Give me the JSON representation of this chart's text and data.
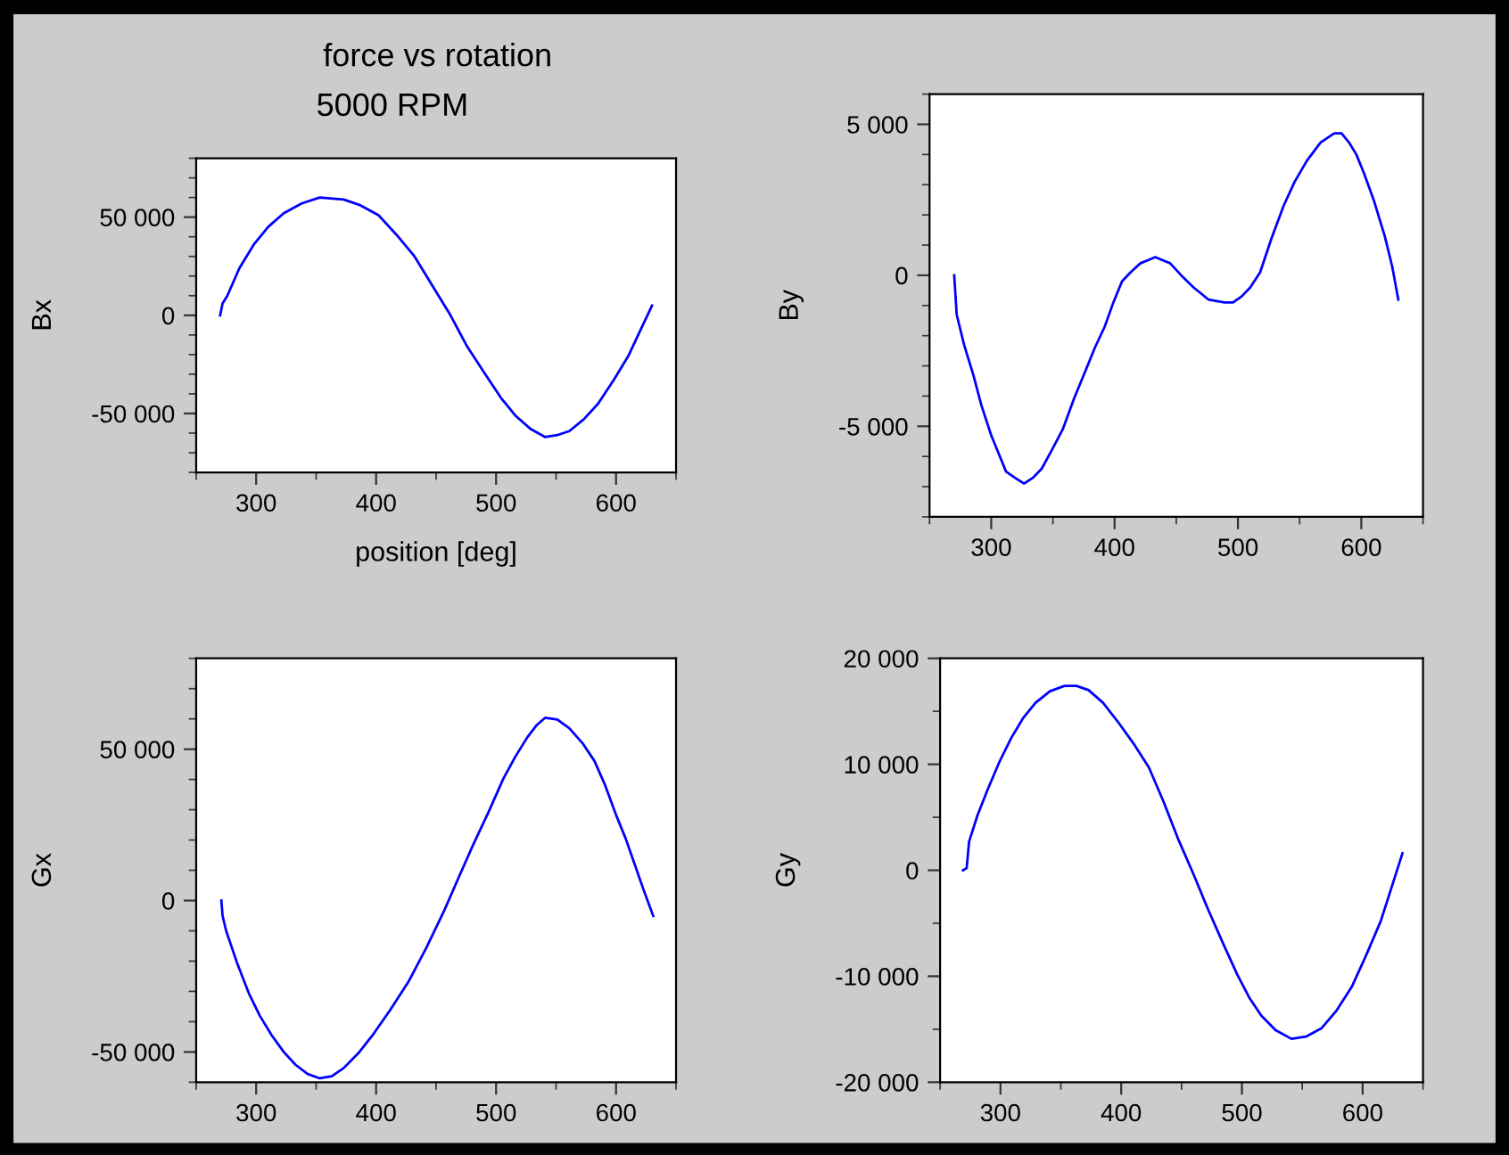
{
  "chart_data": [
    {
      "type": "line",
      "title": "force vs rotation",
      "subtitle": "5000 RPM",
      "xlabel": "position [deg]",
      "ylabel": "Bx",
      "marker": "none",
      "line_style": "solid",
      "xlim": [
        250,
        650
      ],
      "ylim": [
        -80000,
        80000
      ],
      "xticks": [
        {
          "value": 250,
          "label": null
        },
        300,
        {
          "value": 350,
          "label": null
        },
        400,
        {
          "value": 450,
          "label": null
        },
        500,
        {
          "value": 550,
          "label": null
        },
        600,
        {
          "value": 650,
          "label": null
        }
      ],
      "yticks": [
        {
          "value": -80000,
          "label": null
        },
        {
          "value": -70000,
          "label": null
        },
        {
          "value": -60000,
          "label": null
        },
        {
          "value": -50000,
          "label": "-50 000"
        },
        {
          "value": -40000,
          "label": null
        },
        {
          "value": -30000,
          "label": null
        },
        {
          "value": -20000,
          "label": null
        },
        {
          "value": -10000,
          "label": null
        },
        0,
        {
          "value": 10000,
          "label": null
        },
        {
          "value": 20000,
          "label": null
        },
        {
          "value": 30000,
          "label": null
        },
        {
          "value": 40000,
          "label": null
        },
        {
          "value": 50000,
          "label": "50 000"
        },
        {
          "value": 60000,
          "label": null
        },
        {
          "value": 70000,
          "label": null
        },
        {
          "value": 80000,
          "label": null
        }
      ],
      "series": [
        {
          "color": "#0000ff",
          "x": [
            270,
            272,
            276,
            286,
            298,
            310,
            323,
            338,
            353,
            373,
            387,
            402,
            417,
            432,
            447,
            462,
            476,
            491,
            504,
            516,
            529,
            541,
            551,
            561,
            573,
            585,
            598,
            610,
            620,
            630
          ],
          "values": [
            0,
            6000,
            10000,
            24000,
            36000,
            45000,
            52000,
            57000,
            60000,
            59000,
            56000,
            51000,
            41000,
            30000,
            15000,
            0,
            -16000,
            -30000,
            -42000,
            -51000,
            -58000,
            -62000,
            -61000,
            -59000,
            -53000,
            -45000,
            -33000,
            -21000,
            -8000,
            5000
          ]
        }
      ]
    },
    {
      "type": "line",
      "ylabel": "By",
      "marker": "none",
      "line_style": "solid",
      "xlim": [
        250,
        650
      ],
      "ylim": [
        -8000,
        6000
      ],
      "xticks": [
        {
          "value": 250,
          "label": null
        },
        300,
        {
          "value": 350,
          "label": null
        },
        400,
        {
          "value": 450,
          "label": null
        },
        500,
        {
          "value": 550,
          "label": null
        },
        600,
        {
          "value": 650,
          "label": null
        }
      ],
      "yticks": [
        {
          "value": -8000,
          "label": null
        },
        {
          "value": -7000,
          "label": null
        },
        {
          "value": -6000,
          "label": null
        },
        {
          "value": -5000,
          "label": "-5 000"
        },
        {
          "value": -4000,
          "label": null
        },
        {
          "value": -3000,
          "label": null
        },
        {
          "value": -2000,
          "label": null
        },
        {
          "value": -1000,
          "label": null
        },
        0,
        {
          "value": 1000,
          "label": null
        },
        {
          "value": 2000,
          "label": null
        },
        {
          "value": 3000,
          "label": null
        },
        {
          "value": 4000,
          "label": null
        },
        {
          "value": 5000,
          "label": "5 000"
        },
        {
          "value": 6000,
          "label": null
        }
      ],
      "series": [
        {
          "color": "#0000ff",
          "x": [
            270,
            272,
            278,
            285.5,
            292,
            300,
            306,
            312,
            319,
            326.6,
            334,
            341,
            349,
            358,
            367,
            377,
            384,
            392,
            399,
            406,
            413,
            421,
            427,
            433,
            439,
            445,
            454,
            464,
            476,
            489,
            496,
            503,
            510,
            518,
            527,
            537,
            546,
            556,
            567,
            578,
            584,
            590,
            596,
            602,
            610,
            619,
            625,
            630
          ],
          "values": [
            0,
            -1300,
            -2300,
            -3300,
            -4300,
            -5300,
            -5900,
            -6500,
            -6700,
            -6900,
            -6700,
            -6400,
            -5800,
            -5100,
            -4100,
            -3100,
            -2400,
            -1700,
            -900,
            -200,
            100,
            400,
            500,
            600,
            500,
            400,
            0,
            -400,
            -800,
            -900,
            -900,
            -700,
            -400,
            100,
            1200,
            2300,
            3100,
            3800,
            4400,
            4700,
            4700,
            4400,
            4000,
            3400,
            2500,
            1300,
            300,
            -800
          ]
        }
      ]
    },
    {
      "type": "line",
      "ylabel": "Gx",
      "marker": "none",
      "line_style": "solid",
      "xlim": [
        250,
        650
      ],
      "ylim": [
        -60000,
        80000
      ],
      "xticks": [
        {
          "value": 250,
          "label": null
        },
        300,
        {
          "value": 350,
          "label": null
        },
        400,
        {
          "value": 450,
          "label": null
        },
        500,
        {
          "value": 550,
          "label": null
        },
        600,
        {
          "value": 650,
          "label": null
        }
      ],
      "yticks": [
        {
          "value": -60000,
          "label": null
        },
        {
          "value": -50000,
          "label": "-50 000"
        },
        {
          "value": -40000,
          "label": null
        },
        {
          "value": -30000,
          "label": null
        },
        {
          "value": -20000,
          "label": null
        },
        {
          "value": -10000,
          "label": null
        },
        0,
        {
          "value": 10000,
          "label": null
        },
        {
          "value": 20000,
          "label": null
        },
        {
          "value": 30000,
          "label": null
        },
        {
          "value": 40000,
          "label": null
        },
        {
          "value": 50000,
          "label": "50 000"
        },
        {
          "value": 60000,
          "label": null
        },
        {
          "value": 70000,
          "label": null
        },
        {
          "value": 80000,
          "label": null
        }
      ],
      "series": [
        {
          "color": "#0000ff",
          "x": [
            271,
            272,
            275,
            284,
            294,
            303,
            313,
            323,
            333,
            343,
            353,
            363,
            373,
            385,
            397,
            412,
            427,
            442,
            457,
            469,
            481,
            494,
            506,
            516,
            526,
            534,
            541,
            551,
            561,
            572,
            582,
            591,
            600,
            608,
            615,
            623,
            631
          ],
          "values": [
            0,
            -5000,
            -10000,
            -20500,
            -30700,
            -38000,
            -44500,
            -50000,
            -54300,
            -57300,
            -58700,
            -58000,
            -55300,
            -50500,
            -44500,
            -36000,
            -26800,
            -15500,
            -3100,
            7800,
            18500,
            29500,
            40200,
            47500,
            53900,
            58000,
            60400,
            59800,
            56900,
            52000,
            46100,
            38000,
            28300,
            20500,
            12600,
            3500,
            -5100
          ]
        }
      ]
    },
    {
      "type": "line",
      "ylabel": "Gy",
      "marker": "none",
      "line_style": "solid",
      "xlim": [
        250,
        650
      ],
      "ylim": [
        -20000,
        20000
      ],
      "xticks": [
        {
          "value": 250,
          "label": null
        },
        300,
        {
          "value": 350,
          "label": null
        },
        400,
        {
          "value": 450,
          "label": null
        },
        500,
        {
          "value": 550,
          "label": null
        },
        600,
        {
          "value": 650,
          "label": null
        }
      ],
      "yticks": [
        {
          "value": -20000,
          "label": "-20 000"
        },
        {
          "value": -15000,
          "label": null
        },
        {
          "value": -10000,
          "label": "-10 000"
        },
        {
          "value": -5000,
          "label": null
        },
        0,
        {
          "value": 5000,
          "label": null
        },
        {
          "value": 10000,
          "label": "10 000"
        },
        {
          "value": 15000,
          "label": null
        },
        {
          "value": 20000,
          "label": "20 000"
        }
      ],
      "series": [
        {
          "color": "#0000ff",
          "x": [
            269,
            272,
            274,
            281,
            289,
            299,
            309,
            319,
            329,
            341,
            353,
            363,
            373,
            385,
            398,
            410,
            423,
            435,
            447,
            460,
            472,
            484,
            496,
            506,
            516,
            528,
            541,
            553,
            566,
            578,
            591,
            603,
            615,
            624,
            633
          ],
          "values": [
            0,
            200,
            2700,
            5200,
            7500,
            10200,
            12500,
            14400,
            15800,
            16900,
            17400,
            17400,
            17000,
            15800,
            13900,
            12000,
            9700,
            6500,
            3000,
            -400,
            -3700,
            -6800,
            -9800,
            -12000,
            -13700,
            -15100,
            -15900,
            -15700,
            -14900,
            -13300,
            -11000,
            -8000,
            -4800,
            -1600,
            1600
          ]
        }
      ]
    }
  ]
}
